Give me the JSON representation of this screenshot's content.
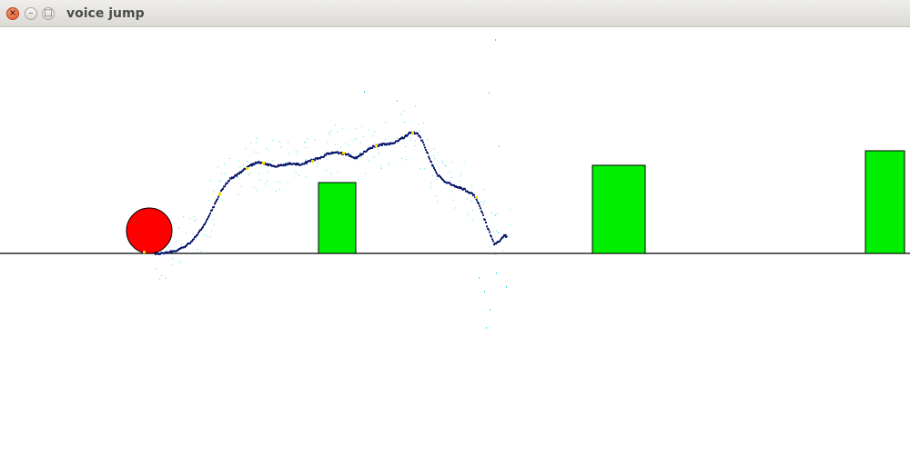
{
  "window": {
    "title": "voice jump",
    "close_glyph": "×",
    "minimize_glyph": "–",
    "maximize_glyph": "□"
  },
  "game": {
    "colors": {
      "background": "#ffffff",
      "ground": "#000000",
      "ball": "#ff0000",
      "obstacle": "#00ee00",
      "pitch_trace": "#0a1a6e",
      "pitch_noise": "#40e0e8",
      "pitch_marker": "#ffd700"
    },
    "player": {
      "shape": "ball",
      "color": "red"
    },
    "obstacles": [
      {
        "name": "obstacle-1",
        "color": "green"
      },
      {
        "name": "obstacle-2",
        "color": "green"
      },
      {
        "name": "obstacle-3",
        "color": "green"
      }
    ]
  }
}
